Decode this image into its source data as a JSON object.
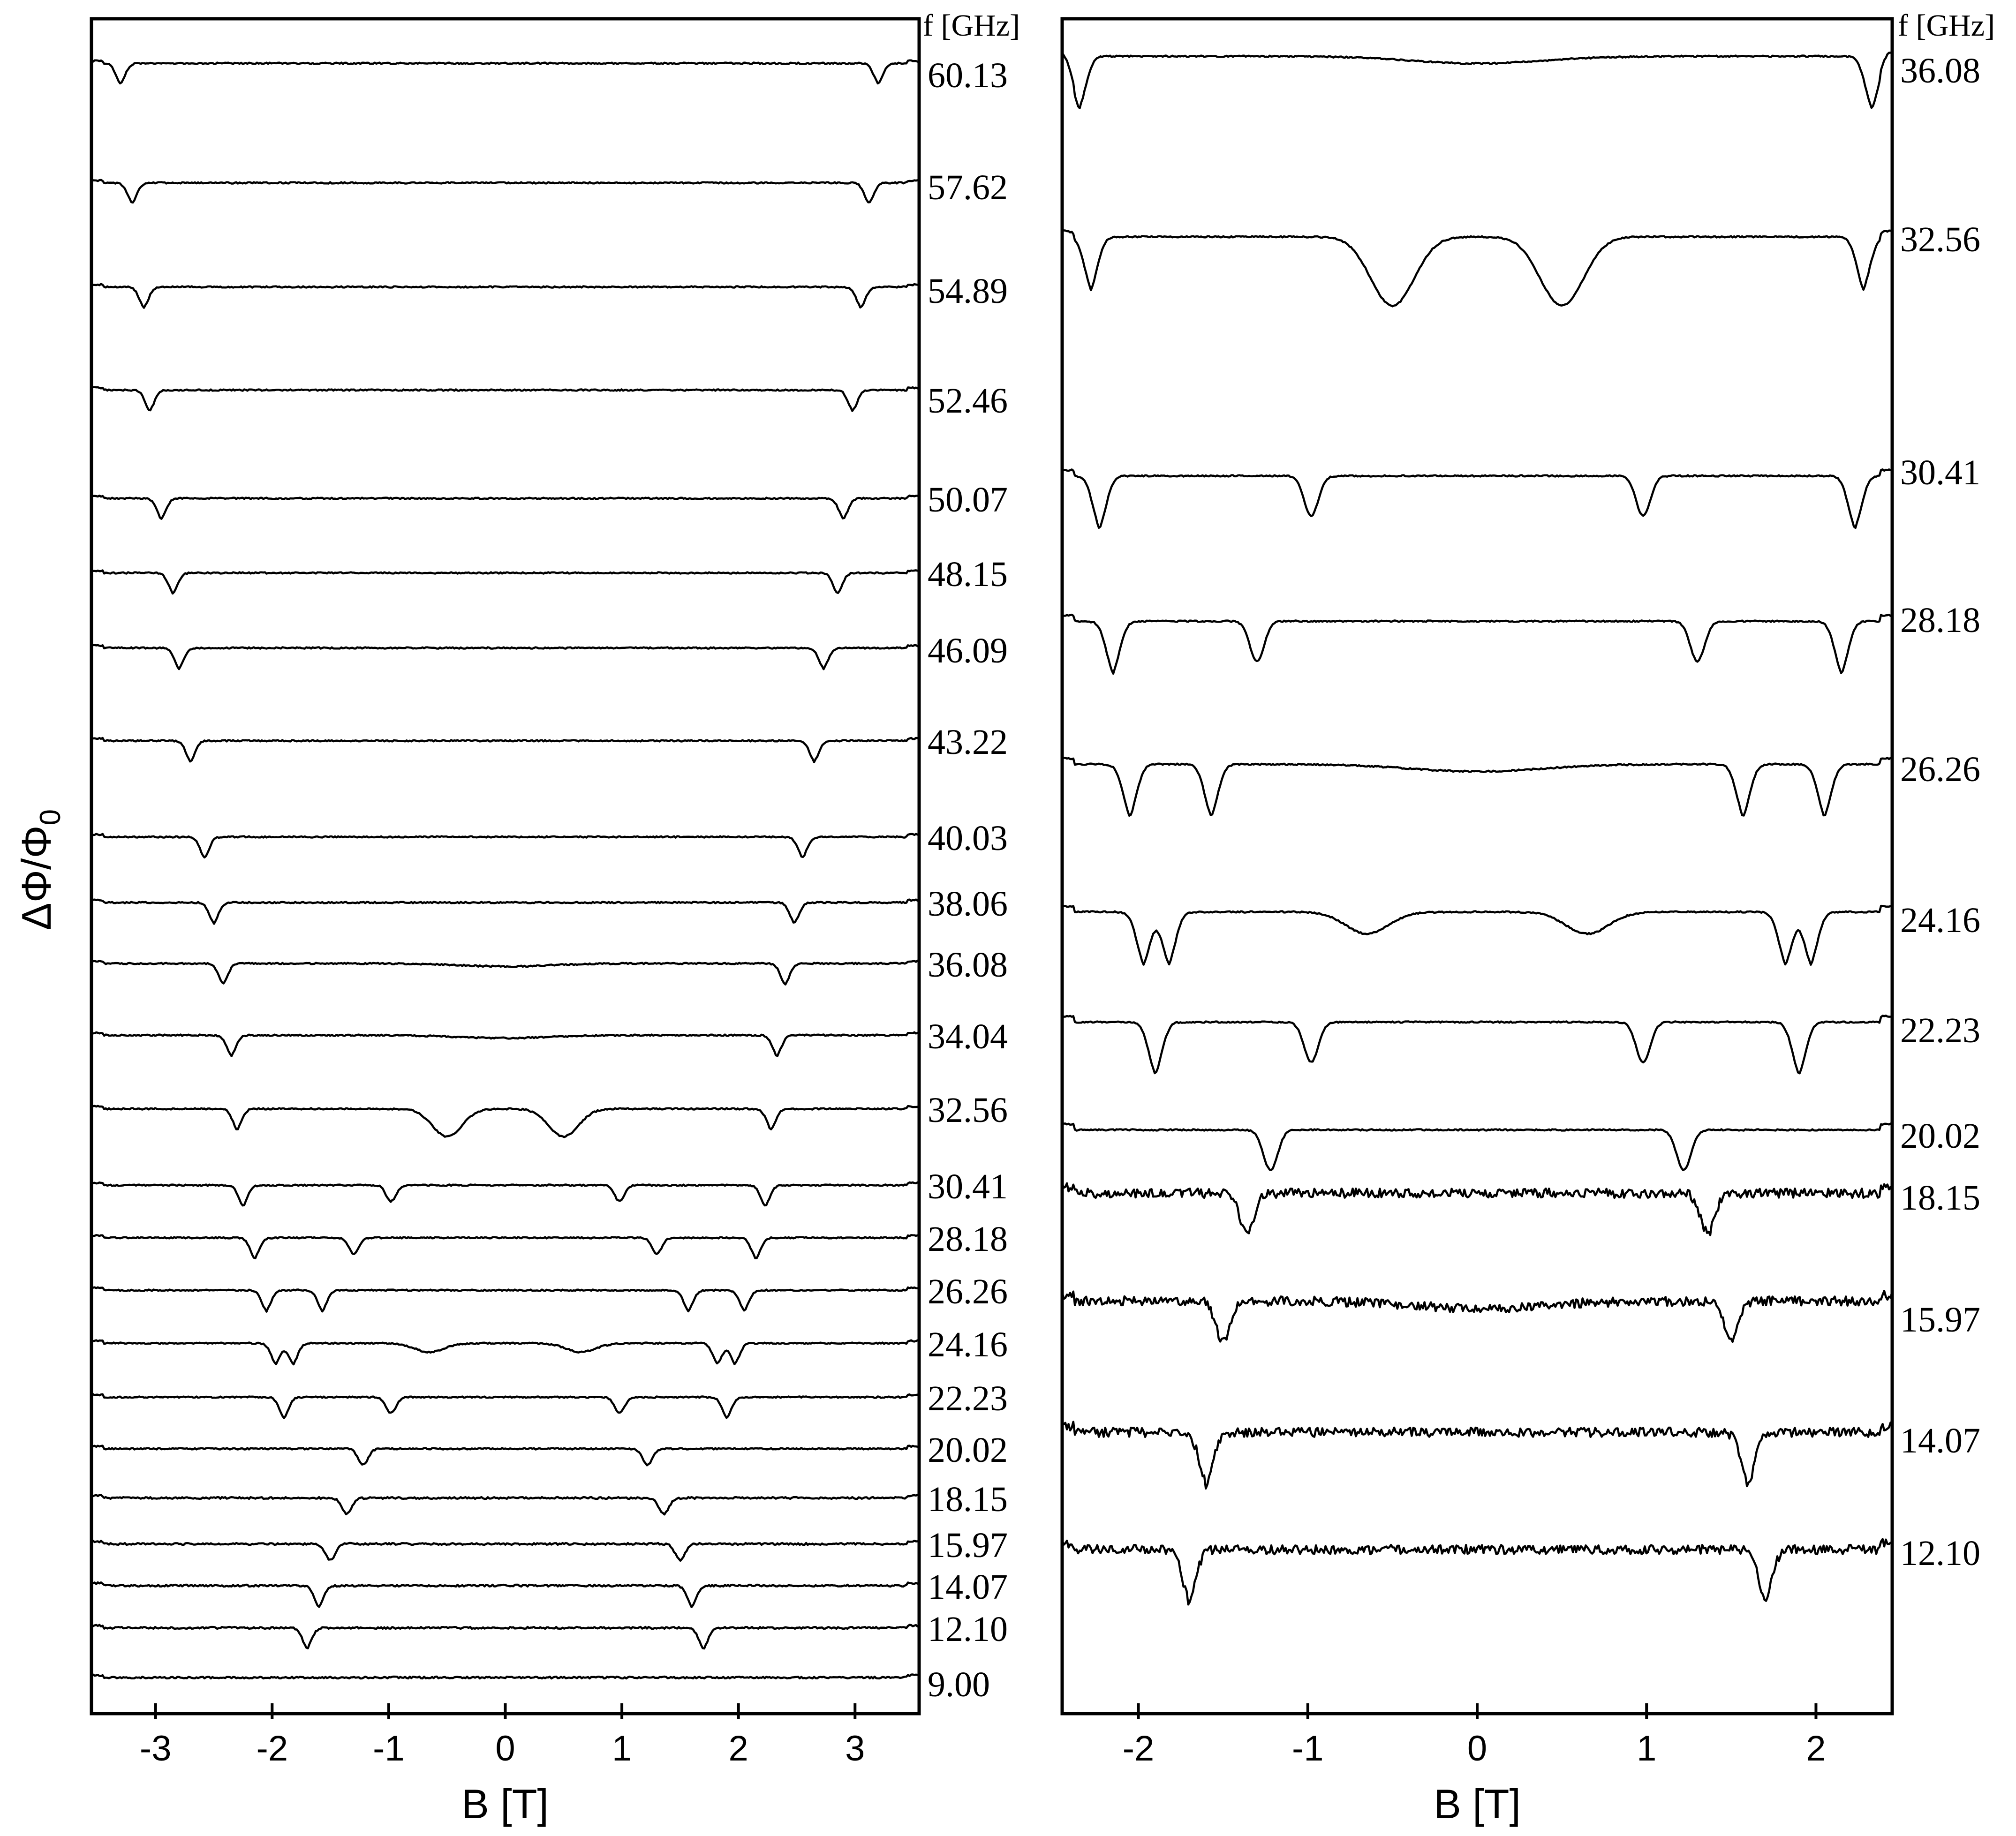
{
  "figure": {
    "ylabel": "ΔΦ/Φ",
    "ylabel_subscript": "0"
  },
  "chart_data": [
    {
      "type": "line",
      "panel": "left",
      "xlabel": "B [T]",
      "ylabel": "ΔΦ/Φ0",
      "xlim": [
        -3.55,
        3.55
      ],
      "xticks": [
        -3,
        -2,
        -1,
        0,
        1,
        2,
        3
      ],
      "xtick_labels": [
        "-3",
        "-2",
        "-1",
        "0",
        "1",
        "2",
        "3"
      ],
      "series_label_header": "f [GHz]",
      "series_label_position": "right",
      "series": [
        {
          "name": "60.13",
          "f_GHz": 60.13,
          "dips_T": [
            -3.3,
            3.2
          ]
        },
        {
          "name": "57.62",
          "f_GHz": 57.62,
          "dips_T": [
            -3.2,
            3.12
          ]
        },
        {
          "name": "54.89",
          "f_GHz": 54.89,
          "dips_T": [
            -3.1,
            3.05
          ]
        },
        {
          "name": "52.46",
          "f_GHz": 52.46,
          "dips_T": [
            -3.05,
            2.98
          ]
        },
        {
          "name": "50.07",
          "f_GHz": 50.07,
          "dips_T": [
            -2.95,
            2.9
          ]
        },
        {
          "name": "48.15",
          "f_GHz": 48.15,
          "dips_T": [
            -2.85,
            2.85
          ]
        },
        {
          "name": "46.09",
          "f_GHz": 46.09,
          "dips_T": [
            -2.8,
            2.73
          ]
        },
        {
          "name": "43.22",
          "f_GHz": 43.22,
          "dips_T": [
            -2.7,
            2.65
          ]
        },
        {
          "name": "40.03",
          "f_GHz": 40.03,
          "dips_T": [
            -2.58,
            2.55
          ]
        },
        {
          "name": "38.06",
          "f_GHz": 38.06,
          "dips_T": [
            -2.5,
            2.48
          ]
        },
        {
          "name": "36.08",
          "f_GHz": 36.08,
          "dips_T": [
            -2.42,
            -0.0,
            2.4
          ]
        },
        {
          "name": "34.04",
          "f_GHz": 34.04,
          "dips_T": [
            -2.35,
            -0.0,
            2.33
          ]
        },
        {
          "name": "32.56",
          "f_GHz": 32.56,
          "dips_T": [
            -2.3,
            -0.5,
            0.5,
            2.28
          ]
        },
        {
          "name": "30.41",
          "f_GHz": 30.41,
          "dips_T": [
            -2.25,
            -0.98,
            0.98,
            2.23
          ]
        },
        {
          "name": "28.18",
          "f_GHz": 28.18,
          "dips_T": [
            -2.15,
            -1.3,
            1.3,
            2.15
          ]
        },
        {
          "name": "26.26",
          "f_GHz": 26.26,
          "dips_T": [
            -2.05,
            -1.57,
            1.57,
            2.05
          ]
        },
        {
          "name": "24.16",
          "f_GHz": 24.16,
          "dips_T": [
            -1.97,
            -1.82,
            -0.65,
            0.65,
            1.82,
            1.97
          ]
        },
        {
          "name": "22.23",
          "f_GHz": 22.23,
          "dips_T": [
            -1.9,
            -0.98,
            0.98,
            1.9
          ]
        },
        {
          "name": "20.02",
          "f_GHz": 20.02,
          "dips_T": [
            -1.22,
            1.22
          ]
        },
        {
          "name": "18.15",
          "f_GHz": 18.15,
          "dips_T": [
            -1.36,
            1.36
          ]
        },
        {
          "name": "15.97",
          "f_GHz": 15.97,
          "dips_T": [
            -1.5,
            1.5
          ]
        },
        {
          "name": "14.07",
          "f_GHz": 14.07,
          "dips_T": [
            -1.6,
            1.6
          ]
        },
        {
          "name": "12.10",
          "f_GHz": 12.1,
          "dips_T": [
            -1.7,
            1.7
          ]
        },
        {
          "name": "9.00",
          "f_GHz": 9.0,
          "dips_T": []
        }
      ]
    },
    {
      "type": "line",
      "panel": "right",
      "xlabel": "B [T]",
      "xlim": [
        -2.45,
        2.45
      ],
      "xticks": [
        -2,
        -1,
        0,
        1,
        2
      ],
      "xtick_labels": [
        "-2",
        "-1",
        "0",
        "1",
        "2"
      ],
      "series_label_header": "f [GHz]",
      "series_label_position": "right",
      "series": [
        {
          "name": "36.08",
          "f_GHz": 36.08,
          "dips_T": [
            -2.35,
            0.0,
            2.33
          ]
        },
        {
          "name": "32.56",
          "f_GHz": 32.56,
          "dips_T": [
            -2.28,
            -0.5,
            0.5,
            2.28
          ]
        },
        {
          "name": "30.41",
          "f_GHz": 30.41,
          "dips_T": [
            -2.23,
            -0.98,
            0.98,
            2.23
          ]
        },
        {
          "name": "28.18",
          "f_GHz": 28.18,
          "dips_T": [
            -2.15,
            -1.3,
            1.3,
            2.15
          ]
        },
        {
          "name": "26.26",
          "f_GHz": 26.26,
          "dips_T": [
            -2.05,
            -1.57,
            0.0,
            1.57,
            2.05
          ]
        },
        {
          "name": "24.16",
          "f_GHz": 24.16,
          "dips_T": [
            -1.97,
            -1.82,
            -0.65,
            0.65,
            1.82,
            1.97
          ]
        },
        {
          "name": "22.23",
          "f_GHz": 22.23,
          "dips_T": [
            -1.9,
            -0.98,
            0.98,
            1.9
          ]
        },
        {
          "name": "20.02",
          "f_GHz": 20.02,
          "dips_T": [
            -1.22,
            1.22
          ]
        },
        {
          "name": "18.15",
          "f_GHz": 18.15,
          "dips_T": [
            -1.36,
            1.36
          ]
        },
        {
          "name": "15.97",
          "f_GHz": 15.97,
          "dips_T": [
            -1.5,
            0.0,
            1.5
          ]
        },
        {
          "name": "14.07",
          "f_GHz": 14.07,
          "dips_T": [
            -1.6,
            1.6
          ]
        },
        {
          "name": "12.10",
          "f_GHz": 12.1,
          "dips_T": [
            -1.7,
            1.7
          ]
        }
      ]
    }
  ]
}
